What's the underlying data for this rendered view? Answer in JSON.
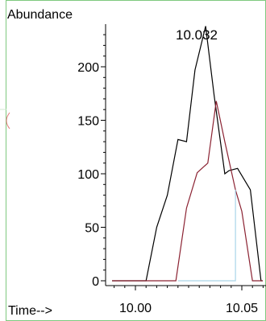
{
  "chart_data": {
    "type": "line",
    "ylabel": "Abundance",
    "xlabel": "Time-->",
    "annotation": "10.032",
    "xlim": [
      9.983,
      10.065
    ],
    "ylim": [
      -5,
      245
    ],
    "x_ticks": [
      {
        "value": 10.0,
        "label": "10.00"
      },
      {
        "value": 10.05,
        "label": "10.05"
      }
    ],
    "y_ticks": [
      {
        "value": 0,
        "label": "0"
      },
      {
        "value": 50,
        "label": "50"
      },
      {
        "value": 100,
        "label": "100"
      },
      {
        "value": 150,
        "label": "150"
      },
      {
        "value": 200,
        "label": "200"
      }
    ],
    "series": [
      {
        "color": "#000000",
        "x": [
          9.983,
          10.005,
          10.01,
          10.015,
          10.02,
          10.024,
          10.028,
          10.033,
          10.037,
          10.042,
          10.044,
          10.048,
          10.054,
          10.059,
          10.063
        ],
        "y": [
          0,
          0,
          50,
          80,
          132,
          130,
          197,
          238,
          173,
          100,
          103,
          105,
          85,
          0,
          0
        ]
      },
      {
        "color": "#8b2232",
        "x": [
          9.983,
          10.019,
          10.024,
          10.029,
          10.034,
          10.038,
          10.042,
          10.047,
          10.05,
          10.055,
          10.063
        ],
        "y": [
          0,
          0,
          68,
          101,
          110,
          168,
          130,
          85,
          65,
          0,
          0
        ]
      },
      {
        "color": "#a9d4e8",
        "x": [
          10.02,
          10.047,
          10.047
        ],
        "y": [
          0,
          0,
          85
        ]
      }
    ]
  },
  "colors": {
    "frame_border": "#7fc97f",
    "axis": "#000000",
    "edge_mark": "#e07a7a"
  }
}
